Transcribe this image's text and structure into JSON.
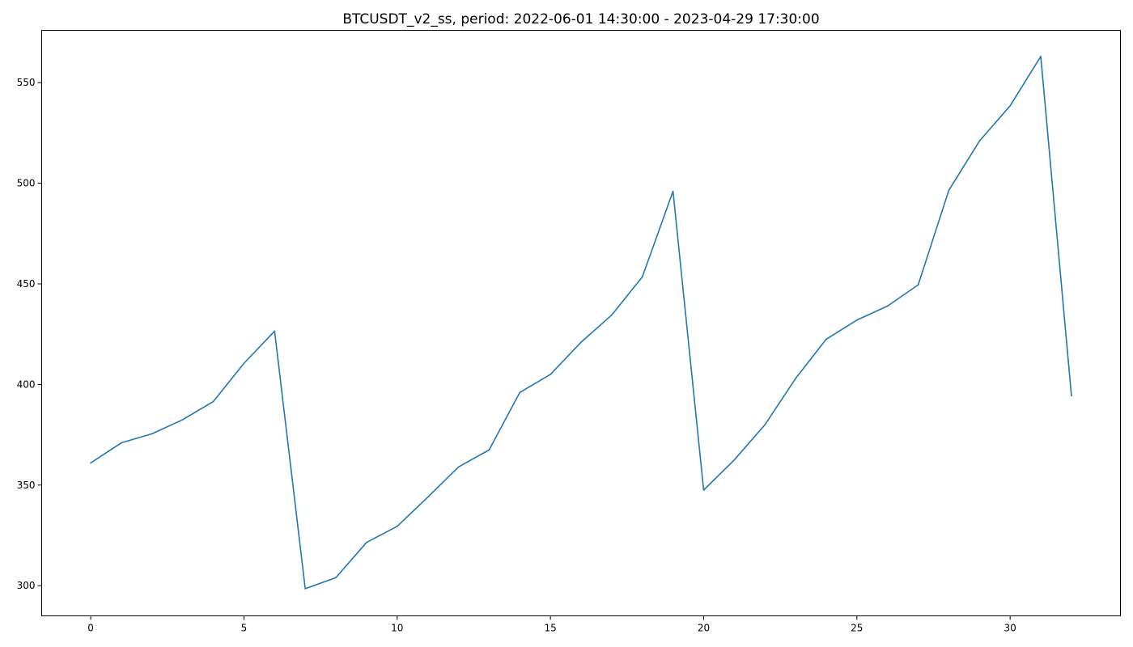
{
  "chart_data": {
    "type": "line",
    "title": "BTCUSDT_v2_ss, period: 2022-06-01 14:30:00 - 2023-04-29 17:30:00",
    "xlabel": "",
    "ylabel": "",
    "grid": false,
    "xlim": [
      -1.6,
      33.6
    ],
    "ylim": [
      285,
      576
    ],
    "xticks": [
      0,
      5,
      10,
      15,
      20,
      25,
      30
    ],
    "yticks": [
      300,
      350,
      400,
      450,
      500,
      550
    ],
    "series": [
      {
        "color": "#1f77b4",
        "x": [
          0,
          1,
          2,
          3,
          4,
          5,
          6,
          7,
          8,
          9,
          10,
          11,
          12,
          13,
          14,
          15,
          16,
          17,
          18,
          19,
          20,
          21,
          22,
          23,
          24,
          25,
          26,
          27,
          28,
          29,
          30,
          31,
          32
        ],
        "values": [
          361,
          371,
          375.5,
          382.5,
          391.5,
          410.5,
          426.5,
          298.5,
          304,
          321.5,
          329.5,
          344,
          359,
          367.5,
          396,
          405,
          421,
          434.5,
          453.5,
          496,
          347.5,
          362.5,
          380,
          403,
          422.5,
          432,
          439,
          449.5,
          496.5,
          521,
          538.5,
          563,
          394.5
        ]
      }
    ]
  }
}
